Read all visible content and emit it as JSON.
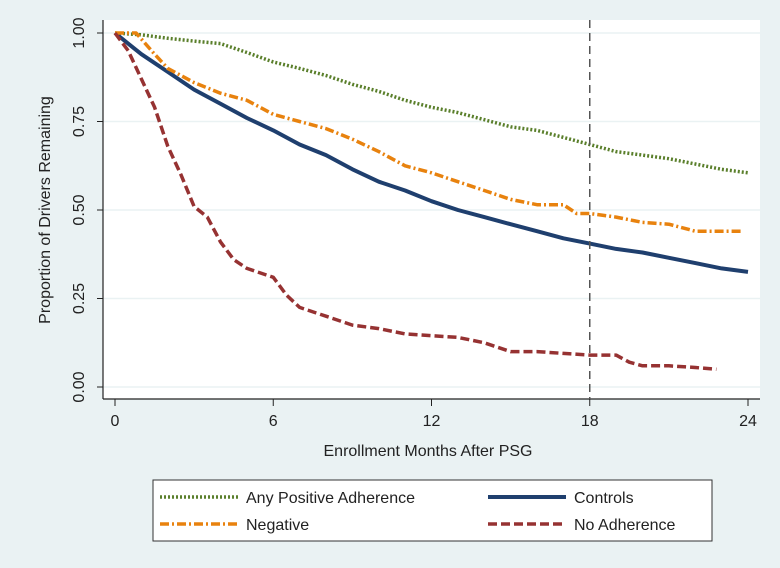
{
  "chart_data": {
    "type": "line",
    "title": "",
    "xlabel": "Enrollment Months After PSG",
    "ylabel": "Proportion of Drivers Remaining",
    "xlim": [
      0,
      24
    ],
    "ylim": [
      0,
      1
    ],
    "xticks": [
      0,
      6,
      12,
      18,
      24
    ],
    "xtick_labels": [
      "0",
      "6",
      "12",
      "18",
      "24"
    ],
    "yticks": [
      0,
      0.25,
      0.5,
      0.75,
      1
    ],
    "ytick_labels": [
      "0.00",
      "0.25",
      "0.50",
      "0.75",
      "1.00"
    ],
    "grid": true,
    "reference_line_x": 18,
    "legend_position": "bottom",
    "series": [
      {
        "name": "Any Positive Adherence",
        "color": "#5a7f2b",
        "dash": "dot",
        "x": [
          0,
          1,
          2,
          3,
          4,
          5,
          6,
          7,
          8,
          9,
          10,
          11,
          12,
          13,
          14,
          15,
          16,
          17,
          18,
          19,
          20,
          21,
          22,
          23,
          24
        ],
        "y": [
          1,
          0.995,
          0.985,
          0.977,
          0.97,
          0.945,
          0.918,
          0.9,
          0.88,
          0.855,
          0.835,
          0.81,
          0.79,
          0.775,
          0.755,
          0.735,
          0.725,
          0.705,
          0.685,
          0.665,
          0.655,
          0.645,
          0.63,
          0.615,
          0.605
        ]
      },
      {
        "name": "Controls",
        "color": "#1f3f6e",
        "dash": "solid",
        "x": [
          0,
          1,
          2,
          3,
          4,
          5,
          6,
          7,
          8,
          9,
          10,
          11,
          12,
          13,
          14,
          15,
          16,
          17,
          18,
          19,
          20,
          21,
          22,
          23,
          24
        ],
        "y": [
          1,
          0.94,
          0.89,
          0.84,
          0.8,
          0.76,
          0.725,
          0.685,
          0.655,
          0.615,
          0.58,
          0.555,
          0.525,
          0.5,
          0.48,
          0.46,
          0.44,
          0.42,
          0.405,
          0.39,
          0.38,
          0.365,
          0.35,
          0.335,
          0.325
        ]
      },
      {
        "name": "Negative",
        "color": "#e8820e",
        "dash": "dashdot",
        "x": [
          0,
          0.8,
          1.5,
          2,
          3,
          4,
          5,
          6,
          7,
          8,
          9,
          10,
          11,
          12,
          13,
          14,
          15,
          16,
          17,
          17.5,
          18,
          19,
          20,
          21,
          22,
          23,
          23.8
        ],
        "y": [
          1,
          1,
          0.94,
          0.9,
          0.86,
          0.83,
          0.81,
          0.77,
          0.75,
          0.73,
          0.7,
          0.665,
          0.625,
          0.605,
          0.58,
          0.555,
          0.53,
          0.515,
          0.515,
          0.49,
          0.49,
          0.48,
          0.465,
          0.46,
          0.44,
          0.44,
          0.44
        ]
      },
      {
        "name": "No Adherence",
        "color": "#963232",
        "dash": "dash",
        "x": [
          0,
          0.5,
          1,
          1.5,
          2,
          2.5,
          3,
          3.5,
          4,
          4.5,
          5,
          6,
          6.5,
          7,
          8,
          9,
          10,
          11,
          12,
          13,
          14,
          15,
          16,
          17,
          18,
          19,
          19.5,
          20,
          21,
          22,
          22.8
        ],
        "y": [
          1,
          0.95,
          0.87,
          0.79,
          0.68,
          0.6,
          0.51,
          0.48,
          0.41,
          0.36,
          0.335,
          0.31,
          0.26,
          0.225,
          0.2,
          0.175,
          0.165,
          0.15,
          0.145,
          0.14,
          0.125,
          0.1,
          0.1,
          0.095,
          0.09,
          0.09,
          0.07,
          0.06,
          0.06,
          0.055,
          0.05
        ]
      }
    ]
  }
}
